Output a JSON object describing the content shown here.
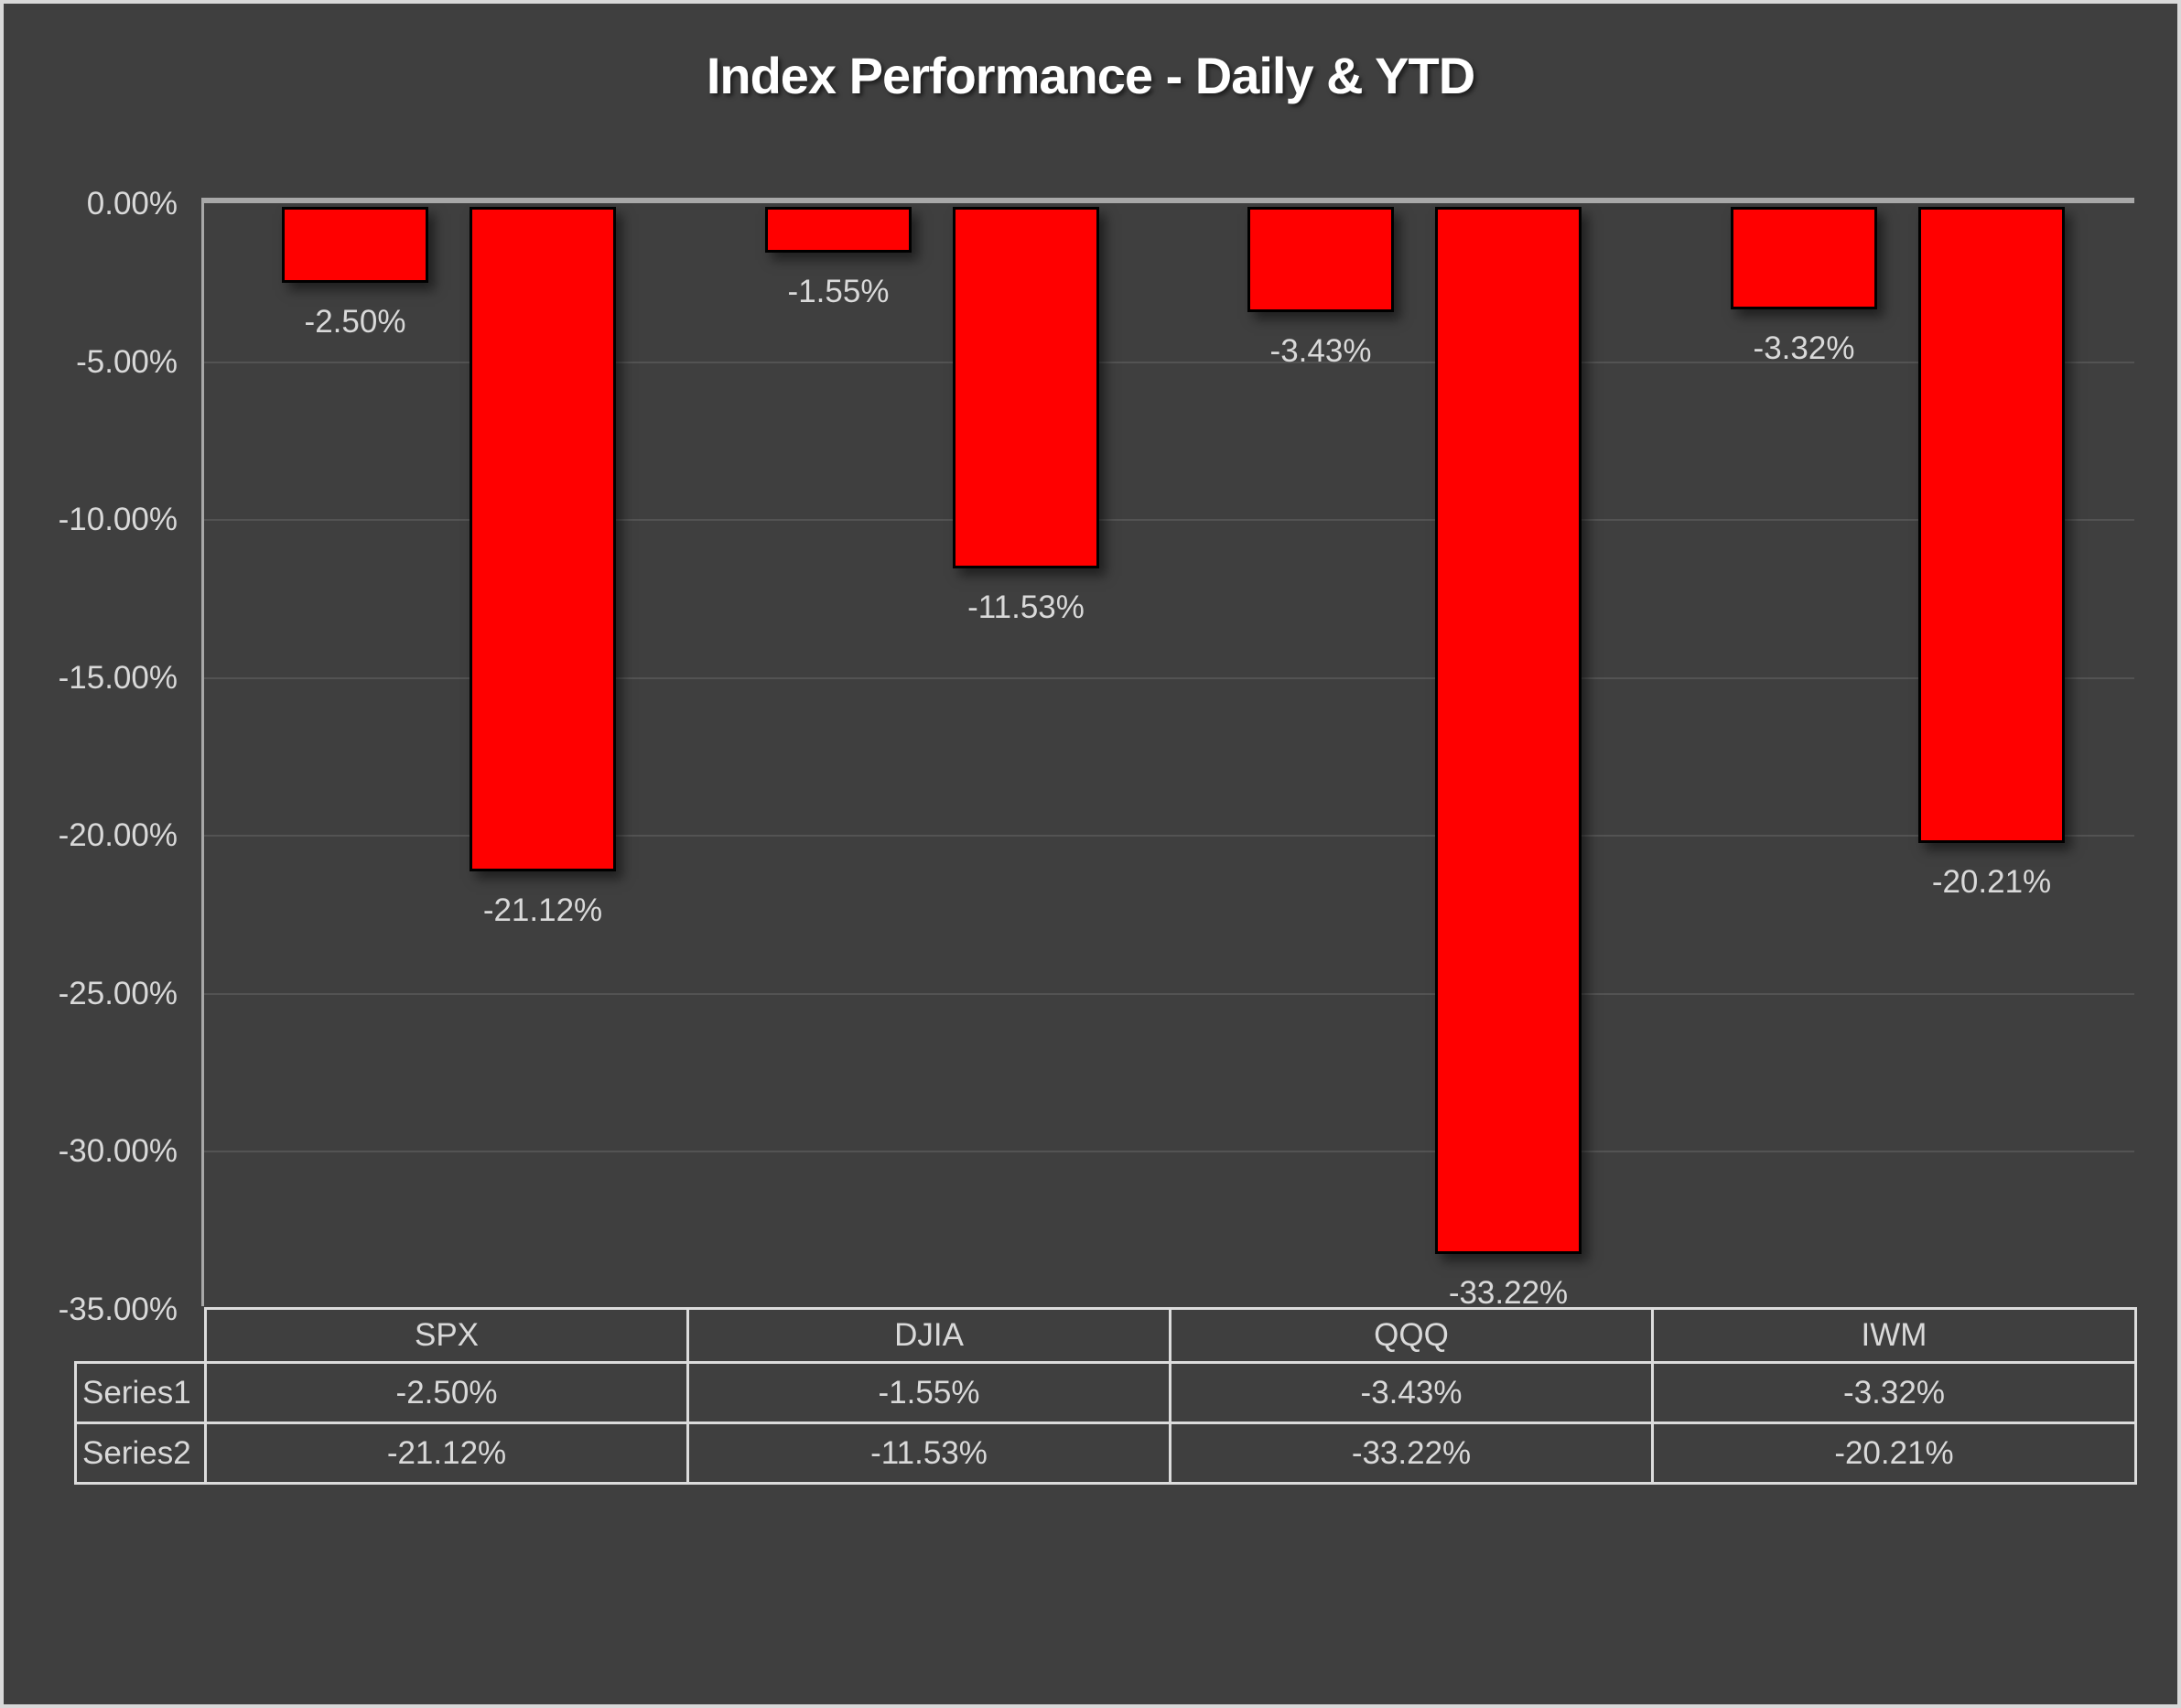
{
  "chart_data": {
    "type": "bar",
    "title": "Index Performance - Daily & YTD",
    "categories": [
      "SPX",
      "DJIA",
      "QQQ",
      "IWM"
    ],
    "series": [
      {
        "name": "Series1",
        "values": [
          -2.5,
          -1.55,
          -3.43,
          -3.32
        ],
        "labels": [
          "-2.50%",
          "-1.55%",
          "-3.43%",
          "-3.32%"
        ]
      },
      {
        "name": "Series2",
        "values": [
          -21.12,
          -11.53,
          -33.22,
          -20.21
        ],
        "labels": [
          "-21.12%",
          "-11.53%",
          "-33.22%",
          "-20.21%"
        ]
      }
    ],
    "xlabel": "",
    "ylabel": "",
    "ylim": [
      -35,
      0
    ],
    "ytick_labels": [
      "0.00%",
      "-5.00%",
      "-10.00%",
      "-15.00%",
      "-20.00%",
      "-25.00%",
      "-30.00%",
      "-35.00%"
    ],
    "grid": true,
    "legend_position": "none",
    "data_table_shown": true,
    "colors": {
      "background": "#3F3F3F",
      "bar_fill": "#FF0000",
      "bar_border": "#000000",
      "axis_line": "#A8A8A8",
      "gridline": "#535353",
      "text": "#D9D9D9",
      "title_text": "#FFFFFF",
      "table_border": "#DCDCDC",
      "frame_border": "#D9D9D9"
    }
  }
}
